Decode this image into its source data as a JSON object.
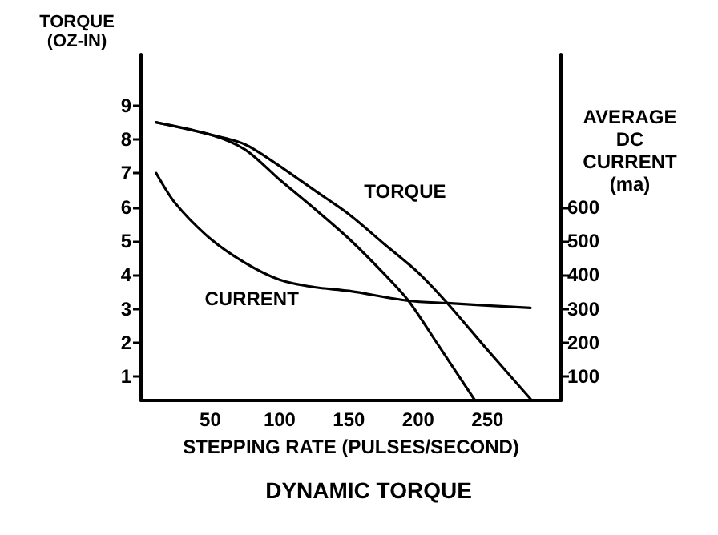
{
  "chart_data": {
    "type": "line",
    "title": "DYNAMIC TORQUE",
    "xlabel": "STEPPING RATE (PULSES/SECOND)",
    "ylabel": "TORQUE\n(OZ-IN)",
    "y2label": "AVERAGE\nDC\nCURRENT\n(ma)",
    "xlim": [
      0,
      303
    ],
    "xticks": [
      50,
      100,
      150,
      200,
      250
    ],
    "ylim": [
      0.3,
      10.5
    ],
    "yticks": [
      1,
      2,
      3,
      4,
      5,
      6,
      7,
      8,
      9
    ],
    "y2lim": [
      30,
      1050
    ],
    "y2ticks": [
      100,
      200,
      300,
      400,
      500,
      600
    ],
    "series": [
      {
        "name": "TORQUE",
        "color": "#000000",
        "x": [
          11,
          50,
          75,
          100,
          125,
          150,
          175,
          200,
          221,
          250,
          282
        ],
        "values": [
          8.5,
          8.14,
          7.85,
          7.21,
          6.5,
          5.79,
          4.93,
          4.07,
          3.17,
          1.79,
          0.3
        ]
      },
      {
        "color": "#000000",
        "x": [
          11,
          50,
          75,
          100,
          125,
          150,
          175,
          193,
          215,
          241
        ],
        "values": [
          8.5,
          8.14,
          7.7,
          6.81,
          5.96,
          5.07,
          4.05,
          3.24,
          1.9,
          0.3
        ]
      },
      {
        "name": "CURRENT",
        "color": "#000000",
        "axis": "y2",
        "x": [
          11,
          25,
          50,
          75,
          100,
          125,
          150,
          193,
          221,
          281
        ],
        "values": [
          700,
          610,
          507,
          436,
          386,
          364,
          353,
          324,
          317,
          303
        ]
      }
    ]
  }
}
